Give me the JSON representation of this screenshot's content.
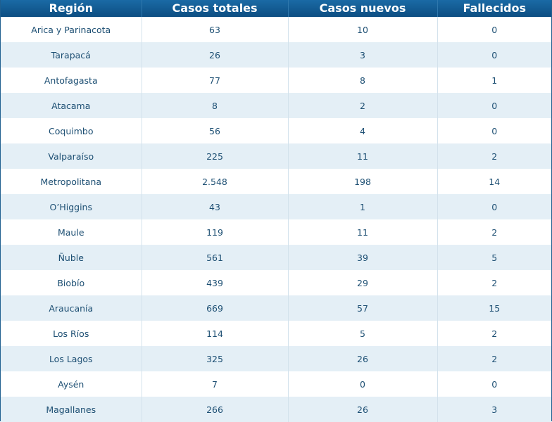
{
  "chart_data": {
    "type": "table",
    "columns": [
      "Región",
      "Casos totales",
      "Casos nuevos",
      "Fallecidos"
    ],
    "rows": [
      [
        "Arica y Parinacota",
        "63",
        "10",
        "0"
      ],
      [
        "Tarapacá",
        "26",
        "3",
        "0"
      ],
      [
        "Antofagasta",
        "77",
        "8",
        "1"
      ],
      [
        "Atacama",
        "8",
        "2",
        "0"
      ],
      [
        "Coquimbo",
        "56",
        "4",
        "0"
      ],
      [
        "Valparaíso",
        "225",
        "11",
        "2"
      ],
      [
        "Metropolitana",
        "2.548",
        "198",
        "14"
      ],
      [
        "O’Higgins",
        "43",
        "1",
        "0"
      ],
      [
        "Maule",
        "119",
        "11",
        "2"
      ],
      [
        "Ñuble",
        "561",
        "39",
        "5"
      ],
      [
        "Biobío",
        "439",
        "29",
        "2"
      ],
      [
        "Araucanía",
        "669",
        "57",
        "15"
      ],
      [
        "Los Ríos",
        "114",
        "5",
        "2"
      ],
      [
        "Los Lagos",
        "325",
        "26",
        "2"
      ],
      [
        "Aysén",
        "7",
        "0",
        "0"
      ],
      [
        "Magallanes",
        "266",
        "26",
        "3"
      ]
    ]
  },
  "colors": {
    "header_bg": "#0d4e82",
    "header_text": "#ffffff",
    "row_alt_bg": "#e4eff6",
    "cell_text": "#1d4f73"
  }
}
